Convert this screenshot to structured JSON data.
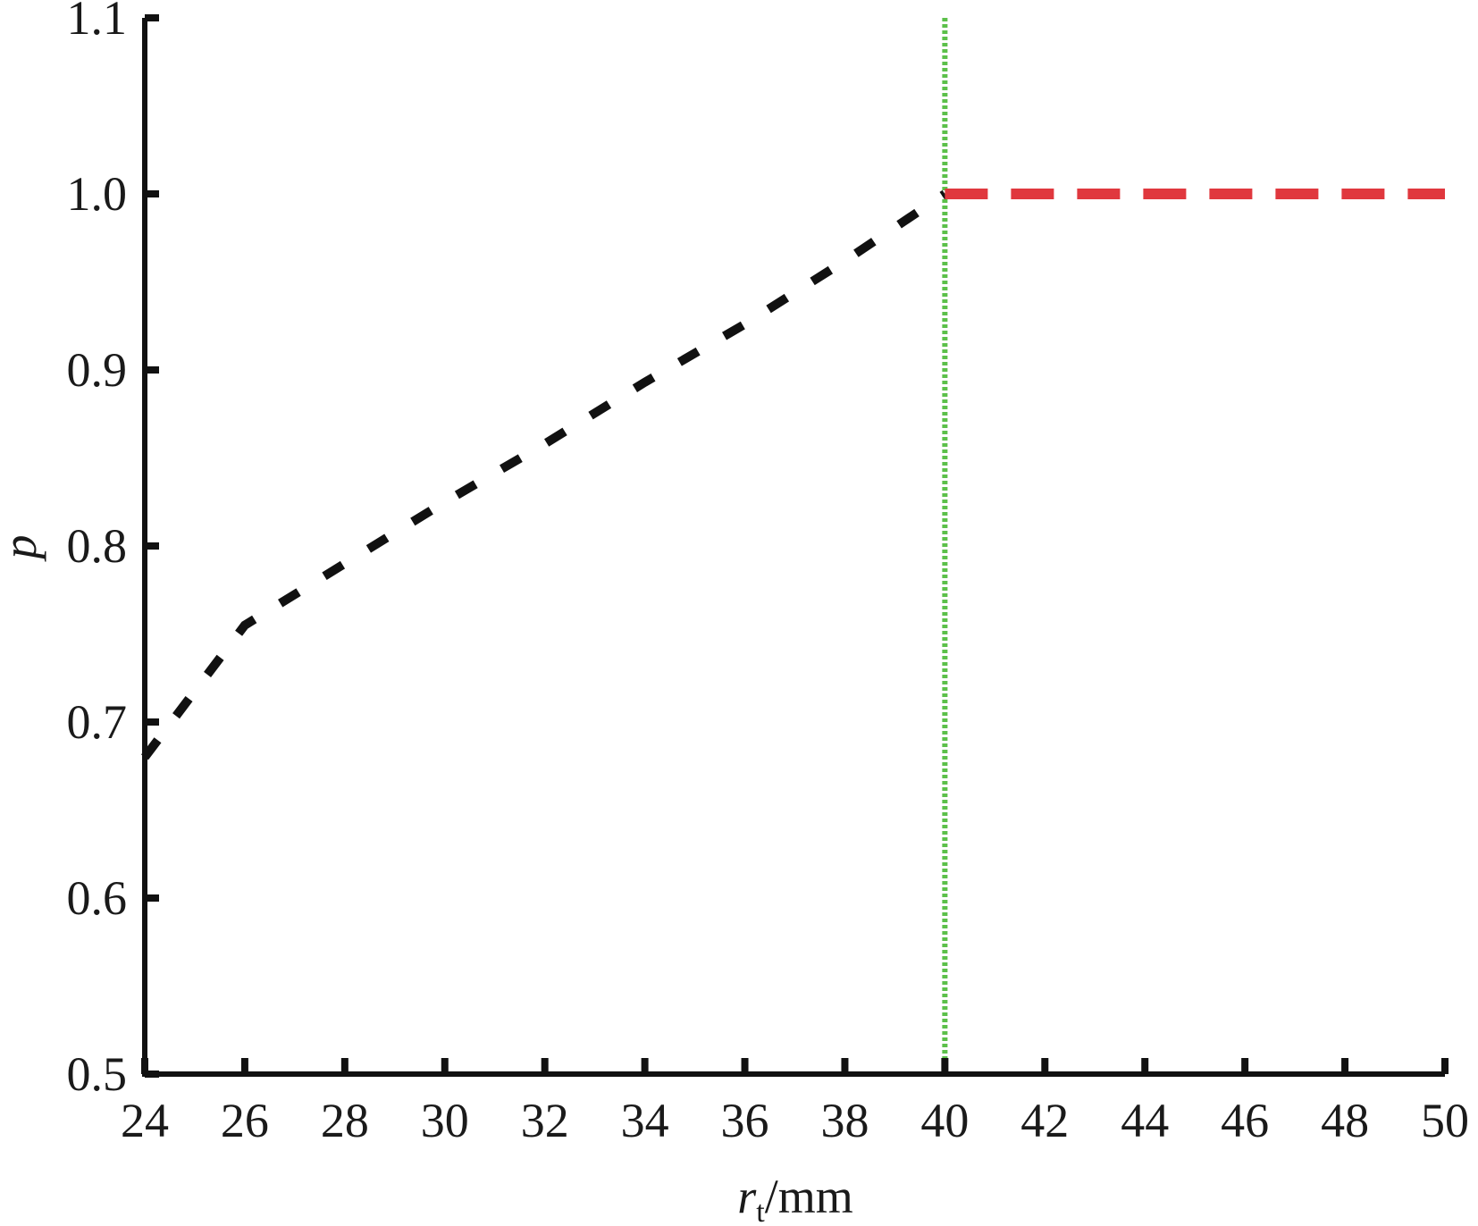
{
  "chart_data": {
    "type": "line",
    "title": "",
    "xlabel": {
      "var": "r",
      "sub": "t",
      "unit": "/mm"
    },
    "ylabel": "p",
    "xlim": [
      24,
      50
    ],
    "ylim": [
      0.5,
      1.1
    ],
    "x_ticks": [
      "24",
      "26",
      "28",
      "30",
      "32",
      "34",
      "36",
      "38",
      "40",
      "42",
      "44",
      "46",
      "48",
      "50"
    ],
    "y_ticks": [
      "0.5",
      "0.6",
      "0.7",
      "0.8",
      "0.9",
      "1.0",
      "1.1"
    ],
    "grid": false,
    "legend": "none",
    "series": [
      {
        "color": "#111111",
        "style": "dashed",
        "x": [
          24,
          26,
          28,
          30,
          32,
          34,
          36,
          38,
          40
        ],
        "y": [
          0.68,
          0.755,
          0.79,
          0.825,
          0.858,
          0.893,
          0.926,
          0.962,
          1.0
        ]
      },
      {
        "color": "#e0383e",
        "style": "dashed",
        "x": [
          40,
          42,
          44,
          46,
          48,
          50
        ],
        "y": [
          1.0,
          1.0,
          1.0,
          1.0,
          1.0,
          1.0
        ]
      }
    ],
    "vlines": [
      {
        "x": 40,
        "color": "#5cc04a",
        "style": "dotted"
      }
    ]
  }
}
